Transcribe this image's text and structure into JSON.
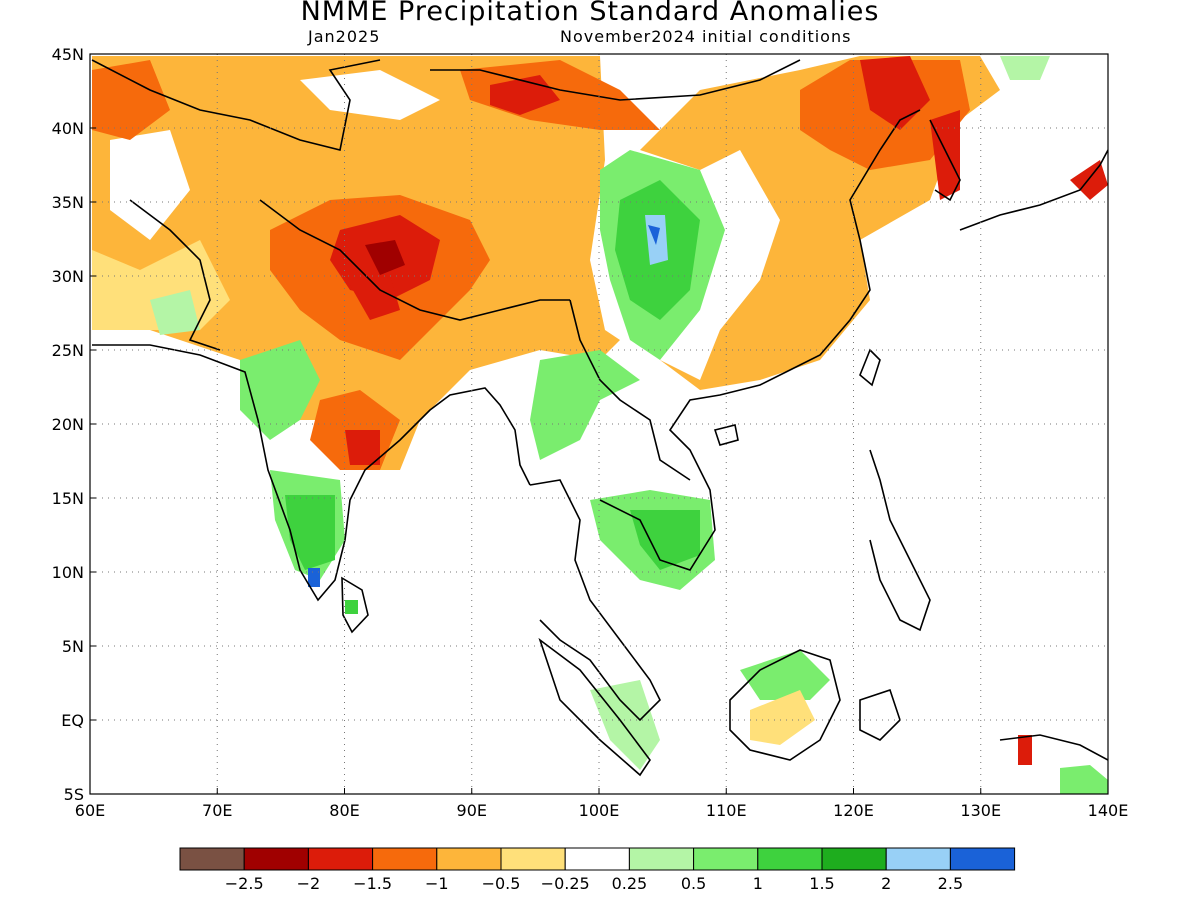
{
  "title": "NMME Precipitation Standard Anomalies",
  "subtitle_left": "Jan2025",
  "subtitle_right": "November2024 initial conditions",
  "map": {
    "lon_range": [
      60,
      140
    ],
    "lat_range": [
      -5,
      45
    ],
    "lon_ticks": [
      {
        "value": 60,
        "label": "60E"
      },
      {
        "value": 70,
        "label": "70E"
      },
      {
        "value": 80,
        "label": "80E"
      },
      {
        "value": 90,
        "label": "90E"
      },
      {
        "value": 100,
        "label": "100E"
      },
      {
        "value": 110,
        "label": "110E"
      },
      {
        "value": 120,
        "label": "120E"
      },
      {
        "value": 130,
        "label": "130E"
      },
      {
        "value": 140,
        "label": "140E"
      }
    ],
    "lat_ticks": [
      {
        "value": 45,
        "label": "45N"
      },
      {
        "value": 40,
        "label": "40N"
      },
      {
        "value": 35,
        "label": "35N"
      },
      {
        "value": 30,
        "label": "30N"
      },
      {
        "value": 25,
        "label": "25N"
      },
      {
        "value": 20,
        "label": "20N"
      },
      {
        "value": 15,
        "label": "15N"
      },
      {
        "value": 10,
        "label": "10N"
      },
      {
        "value": 5,
        "label": "5N"
      },
      {
        "value": 0,
        "label": "EQ"
      },
      {
        "value": -5,
        "label": "5S"
      }
    ],
    "grid": "dotted"
  },
  "colorbar": {
    "colors": [
      "#7a5143",
      "#a00000",
      "#dc1c0a",
      "#f66a0c",
      "#fdb53a",
      "#ffe07a",
      "#ffffff",
      "#b4f5a6",
      "#7aed6e",
      "#3ed23e",
      "#1ead1e",
      "#98d0f6",
      "#1a62d8"
    ],
    "labels": [
      "-2.5",
      "-2",
      "-1.5",
      "-1",
      "-0.5",
      "-0.25",
      "0.25",
      "0.5",
      "1",
      "1.5",
      "2",
      "2.5"
    ]
  },
  "anomaly_regions": [
    {
      "level": "-1.5",
      "color": "#dc1c0a",
      "lon_min": 81,
      "lon_max": 87,
      "lat_min": 29,
      "lat_max": 33
    },
    {
      "level": "-1.5",
      "color": "#dc1c0a",
      "lon_min": 93,
      "lon_max": 97,
      "lat_min": 41,
      "lat_max": 44
    },
    {
      "level": "-1.5",
      "color": "#dc1c0a",
      "lon_min": 120,
      "lon_max": 127,
      "lat_min": 38,
      "lat_max": 44
    },
    {
      "level": "-1",
      "color": "#f66a0c",
      "lon_min": 76,
      "lon_max": 92,
      "lat_min": 24,
      "lat_max": 35
    },
    {
      "level": "-1",
      "color": "#f66a0c",
      "lon_min": 60,
      "lon_max": 66,
      "lat_min": 37,
      "lat_max": 44
    },
    {
      "level": "-1",
      "color": "#f66a0c",
      "lon_min": 88,
      "lon_max": 103,
      "lat_min": 39,
      "lat_max": 45
    },
    {
      "level": "-1",
      "color": "#f66a0c",
      "lon_min": 79,
      "lon_max": 85,
      "lat_min": 17,
      "lat_max": 22
    },
    {
      "level": "-0.5",
      "color": "#fdb53a",
      "lon_min": 60,
      "lon_max": 103,
      "lat_min": 20,
      "lat_max": 45
    },
    {
      "level": "-0.5",
      "color": "#fdb53a",
      "lon_min": 104,
      "lon_max": 129,
      "lat_min": 22,
      "lat_max": 45
    },
    {
      "level": "-0.25",
      "color": "#ffe07a",
      "lon_min": 113,
      "lon_max": 117,
      "lat_min": -2,
      "lat_max": 1
    },
    {
      "level": "0.5",
      "color": "#7aed6e",
      "lon_min": 100,
      "lon_max": 109,
      "lat_min": 22,
      "lat_max": 37
    },
    {
      "level": "1",
      "color": "#3ed23e",
      "lon_min": 102,
      "lon_max": 107,
      "lat_min": 26,
      "lat_max": 35
    },
    {
      "level": "1",
      "color": "#3ed23e",
      "lon_min": 75,
      "lon_max": 80,
      "lat_min": 10,
      "lat_max": 15
    },
    {
      "level": "0.5",
      "color": "#7aed6e",
      "lon_min": 97,
      "lon_max": 109,
      "lat_min": 10,
      "lat_max": 16
    },
    {
      "level": "2.5",
      "color": "#1a62d8",
      "lon_min": 77,
      "lon_max": 78,
      "lat_min": 9,
      "lat_max": 10
    },
    {
      "level": "2",
      "color": "#98d0f6",
      "lon_min": 104,
      "lon_max": 105,
      "lat_min": 31,
      "lat_max": 33
    }
  ]
}
